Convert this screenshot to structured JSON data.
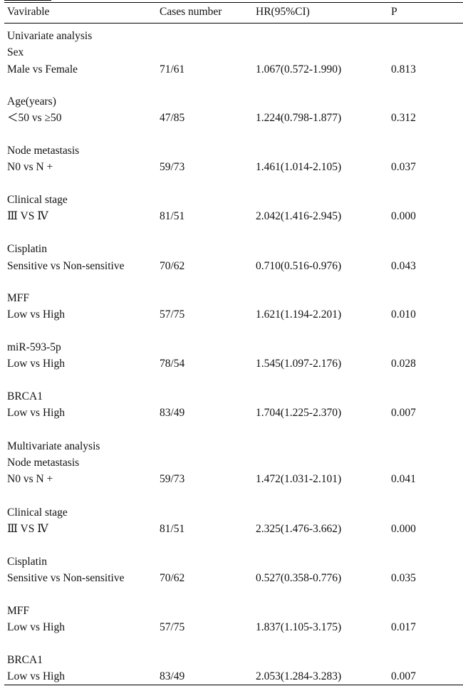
{
  "header": {
    "variable": "Vavirable",
    "cases": "Cases number",
    "hr": "HR(95%CI)",
    "p": "P"
  },
  "univariate": {
    "title": "Univariate analysis",
    "rows": [
      {
        "group": "Sex",
        "comparison": "Male vs Female",
        "cases": "71/61",
        "hr": "1.067(0.572-1.990)",
        "p": "0.813"
      },
      {
        "group": "Age(years)",
        "comparison": "＜50 vs ≥50",
        "cases": "47/85",
        "hr": "1.224(0.798-1.877)",
        "p": "0.312"
      },
      {
        "group": "Node metastasis",
        "comparison": "N0 vs N +",
        "cases": "59/73",
        "hr": "1.461(1.014-2.105)",
        "p": "0.037"
      },
      {
        "group": "Clinical stage",
        "comparison": "Ⅲ VS Ⅳ",
        "cases": "81/51",
        "hr": "2.042(1.416-2.945)",
        "p": "0.000"
      },
      {
        "group": "Cisplatin",
        "comparison": "Sensitive vs Non-sensitive",
        "cases": "70/62",
        "hr": "0.710(0.516-0.976)",
        "p": "0.043"
      },
      {
        "group": "MFF",
        "comparison": "Low vs High",
        "cases": "57/75",
        "hr": "1.621(1.194-2.201)",
        "p": "0.010"
      },
      {
        "group": "miR-593-5p",
        "comparison": "Low vs High",
        "cases": "78/54",
        "hr": "1.545(1.097-2.176)",
        "p": "0.028"
      },
      {
        "group": "BRCA1",
        "comparison": "Low vs High",
        "cases": "83/49",
        "hr": "1.704(1.225-2.370)",
        "p": "0.007"
      }
    ]
  },
  "multivariate": {
    "title": "Multivariate analysis",
    "rows": [
      {
        "group": "Node metastasis",
        "comparison": "N0 vs N +",
        "cases": "59/73",
        "hr": "1.472(1.031-2.101)",
        "p": "0.041"
      },
      {
        "group": "Clinical stage",
        "comparison": "Ⅲ VS Ⅳ",
        "cases": "81/51",
        "hr": "2.325(1.476-3.662)",
        "p": "0.000"
      },
      {
        "group": "Cisplatin",
        "comparison": "Sensitive vs Non-sensitive",
        "cases": "70/62",
        "hr": "0.527(0.358-0.776)",
        "p": "0.035"
      },
      {
        "group": "MFF",
        "comparison": "Low vs High",
        "cases": "57/75",
        "hr": "1.837(1.105-3.175)",
        "p": "0.017"
      },
      {
        "group": "BRCA1",
        "comparison": "Low vs High",
        "cases": "83/49",
        "hr": "2.053(1.284-3.283)",
        "p": "0.007"
      }
    ]
  }
}
